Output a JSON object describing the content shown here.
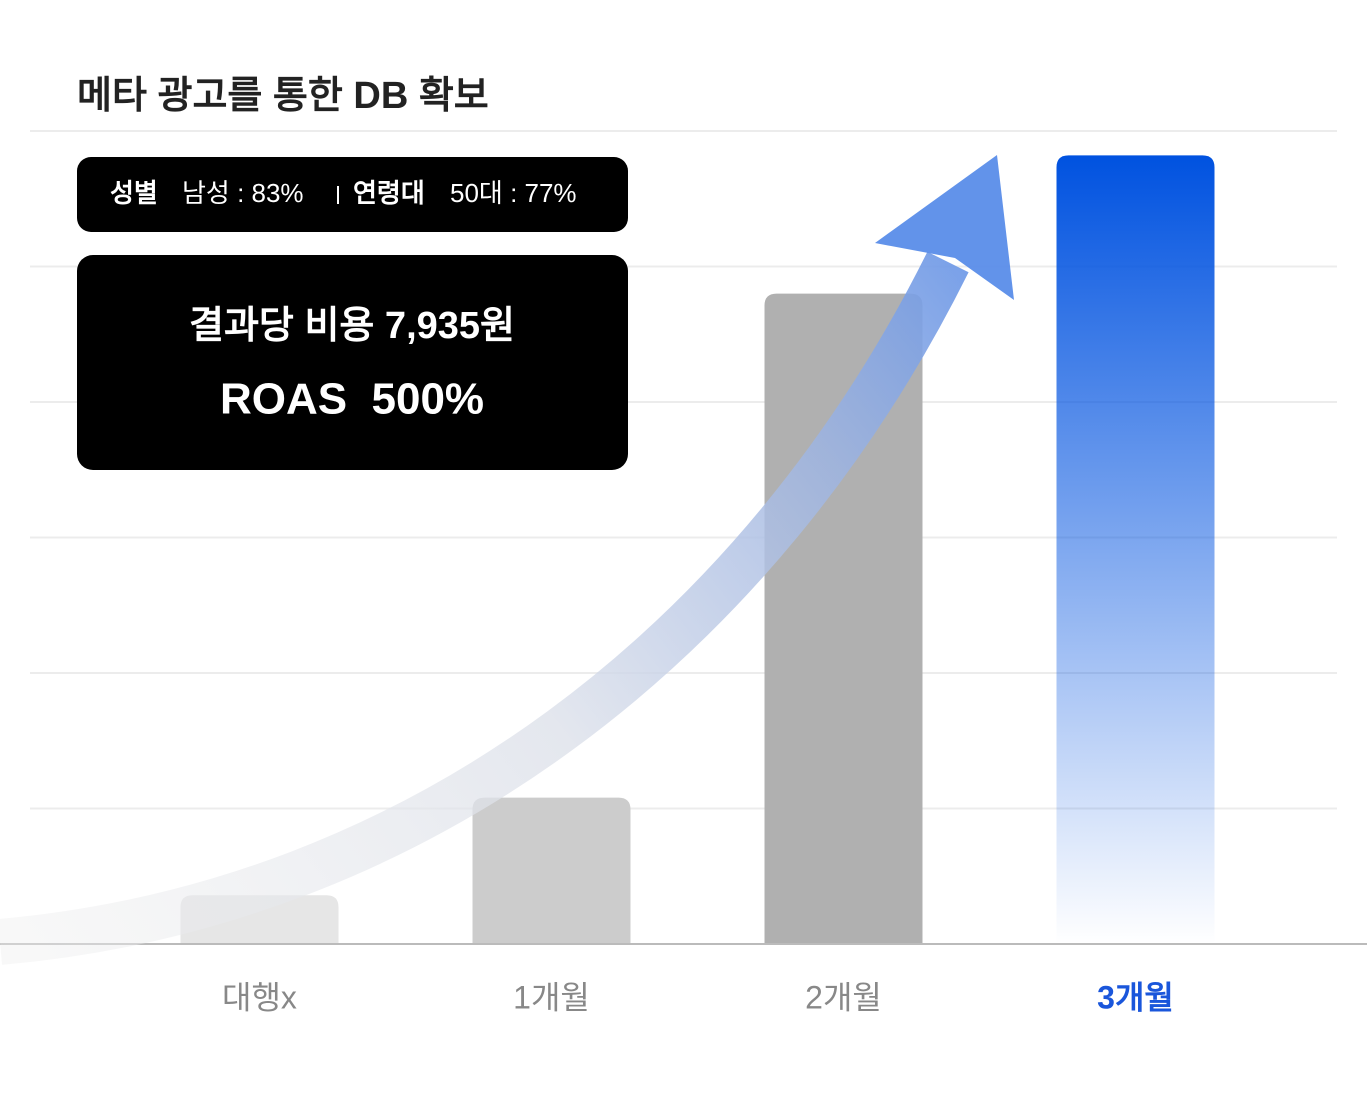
{
  "chart_data": {
    "type": "bar",
    "title": "메타 광고를 통한 DB 확보",
    "categories": [
      "대행x",
      "1개월",
      "2개월",
      "3개월"
    ],
    "values": [
      6,
      18,
      80,
      97
    ],
    "colors": [
      "#e6e6e6",
      "#cccccc",
      "#b0b0b0",
      "#0052e0"
    ],
    "highlight": "3개월",
    "label_color": "#888888",
    "highlight_color": "#1a56db",
    "ylim": [
      0,
      100
    ],
    "grid": true,
    "annotations": {
      "badge": [
        "성별",
        "남성 : 83%",
        "연령대",
        "50대 : 77%"
      ],
      "box": [
        "결과당 비용 7,935원",
        "ROAS  500%"
      ]
    }
  }
}
